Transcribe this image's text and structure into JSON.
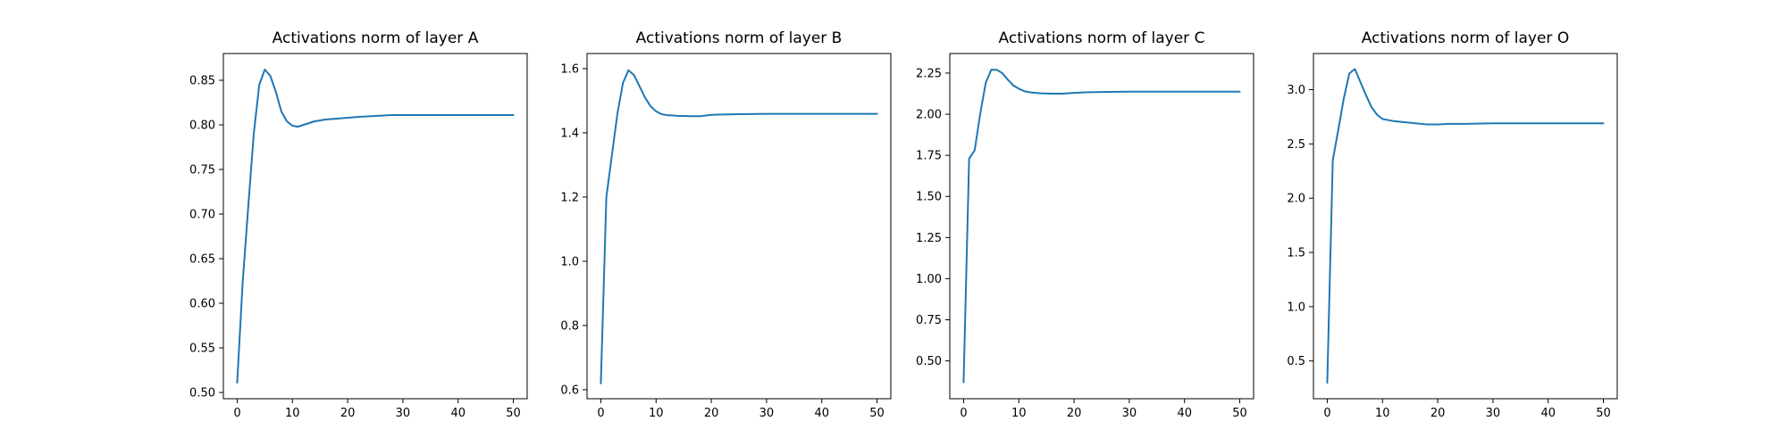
{
  "figure": {
    "background": "#ffffff",
    "line_color": "#1f77b4",
    "axis_color": "#000000"
  },
  "chart_data": [
    {
      "type": "line",
      "title": "Activations norm of layer A",
      "xlabel": "",
      "ylabel": "",
      "xlim": [
        -2.5,
        52.5
      ],
      "ylim": [
        0.493,
        0.88
      ],
      "xticks": [
        0,
        10,
        20,
        30,
        40,
        50
      ],
      "xtick_labels": [
        "0",
        "10",
        "20",
        "30",
        "40",
        "50"
      ],
      "yticks": [
        0.5,
        0.55,
        0.6,
        0.65,
        0.7,
        0.75,
        0.8,
        0.85
      ],
      "ytick_labels": [
        "0.50",
        "0.55",
        "0.60",
        "0.65",
        "0.70",
        "0.75",
        "0.80",
        "0.85"
      ],
      "grid": false,
      "legend": "none",
      "series": [
        {
          "color": "#1f77b4",
          "x": [
            0,
            1,
            2,
            3,
            4,
            5,
            6,
            7,
            8,
            9,
            10,
            11,
            12,
            13,
            14,
            15,
            16,
            18,
            20,
            22,
            25,
            28,
            30,
            35,
            40,
            45,
            50
          ],
          "y": [
            0.511,
            0.624,
            0.708,
            0.79,
            0.845,
            0.862,
            0.855,
            0.837,
            0.815,
            0.804,
            0.799,
            0.798,
            0.8,
            0.802,
            0.804,
            0.805,
            0.806,
            0.807,
            0.808,
            0.809,
            0.81,
            0.811,
            0.811,
            0.811,
            0.811,
            0.811,
            0.811
          ]
        }
      ]
    },
    {
      "type": "line",
      "title": "Activations norm of layer B",
      "xlabel": "",
      "ylabel": "",
      "xlim": [
        -2.5,
        52.5
      ],
      "ylim": [
        0.572,
        1.647
      ],
      "xticks": [
        0,
        10,
        20,
        30,
        40,
        50
      ],
      "xtick_labels": [
        "0",
        "10",
        "20",
        "30",
        "40",
        "50"
      ],
      "yticks": [
        0.6,
        0.8,
        1.0,
        1.2,
        1.4,
        1.6
      ],
      "ytick_labels": [
        "0.6",
        "0.8",
        "1.0",
        "1.2",
        "1.4",
        "1.6"
      ],
      "grid": false,
      "legend": "none",
      "series": [
        {
          "color": "#1f77b4",
          "x": [
            0,
            1,
            2,
            3,
            4,
            5,
            6,
            7,
            8,
            9,
            10,
            11,
            12,
            14,
            16,
            18,
            20,
            22,
            25,
            30,
            35,
            40,
            45,
            50
          ],
          "y": [
            0.62,
            1.2,
            1.33,
            1.46,
            1.555,
            1.595,
            1.58,
            1.545,
            1.51,
            1.483,
            1.467,
            1.458,
            1.455,
            1.453,
            1.452,
            1.452,
            1.456,
            1.457,
            1.458,
            1.459,
            1.459,
            1.459,
            1.459,
            1.459
          ]
        }
      ]
    },
    {
      "type": "line",
      "title": "Activations norm of layer C",
      "xlabel": "",
      "ylabel": "",
      "xlim": [
        -2.5,
        52.5
      ],
      "ylim": [
        0.27,
        2.369
      ],
      "xticks": [
        0,
        10,
        20,
        30,
        40,
        50
      ],
      "xtick_labels": [
        "0",
        "10",
        "20",
        "30",
        "40",
        "50"
      ],
      "yticks": [
        0.5,
        0.75,
        1.0,
        1.25,
        1.5,
        1.75,
        2.0,
        2.25
      ],
      "ytick_labels": [
        "0.50",
        "0.75",
        "1.00",
        "1.25",
        "1.50",
        "1.75",
        "2.00",
        "2.25"
      ],
      "grid": false,
      "legend": "none",
      "series": [
        {
          "color": "#1f77b4",
          "x": [
            0,
            1,
            2,
            3,
            4,
            5,
            6,
            7,
            8,
            9,
            10,
            11,
            12,
            14,
            16,
            18,
            20,
            22,
            25,
            30,
            35,
            40,
            45,
            50
          ],
          "y": [
            0.37,
            1.73,
            1.78,
            2.0,
            2.19,
            2.27,
            2.27,
            2.25,
            2.21,
            2.175,
            2.155,
            2.14,
            2.133,
            2.127,
            2.125,
            2.125,
            2.13,
            2.133,
            2.135,
            2.137,
            2.137,
            2.137,
            2.137,
            2.137
          ]
        }
      ]
    },
    {
      "type": "line",
      "title": "Activations norm of layer O",
      "xlabel": "",
      "ylabel": "",
      "xlim": [
        -2.5,
        52.5
      ],
      "ylim": [
        0.152,
        3.333
      ],
      "xticks": [
        0,
        10,
        20,
        30,
        40,
        50
      ],
      "xtick_labels": [
        "0",
        "10",
        "20",
        "30",
        "40",
        "50"
      ],
      "yticks": [
        0.5,
        1.0,
        1.5,
        2.0,
        2.5,
        3.0
      ],
      "ytick_labels": [
        "0.5",
        "1.0",
        "1.5",
        "2.0",
        "2.5",
        "3.0"
      ],
      "grid": false,
      "legend": "none",
      "series": [
        {
          "color": "#1f77b4",
          "x": [
            0,
            1,
            2,
            3,
            4,
            5,
            6,
            7,
            8,
            9,
            10,
            11,
            12,
            14,
            16,
            18,
            20,
            22,
            25,
            30,
            35,
            40,
            45,
            50
          ],
          "y": [
            0.3,
            2.35,
            2.63,
            2.92,
            3.15,
            3.19,
            3.07,
            2.95,
            2.84,
            2.77,
            2.73,
            2.72,
            2.71,
            2.7,
            2.69,
            2.68,
            2.68,
            2.685,
            2.685,
            2.69,
            2.69,
            2.69,
            2.69,
            2.69
          ]
        }
      ]
    }
  ]
}
